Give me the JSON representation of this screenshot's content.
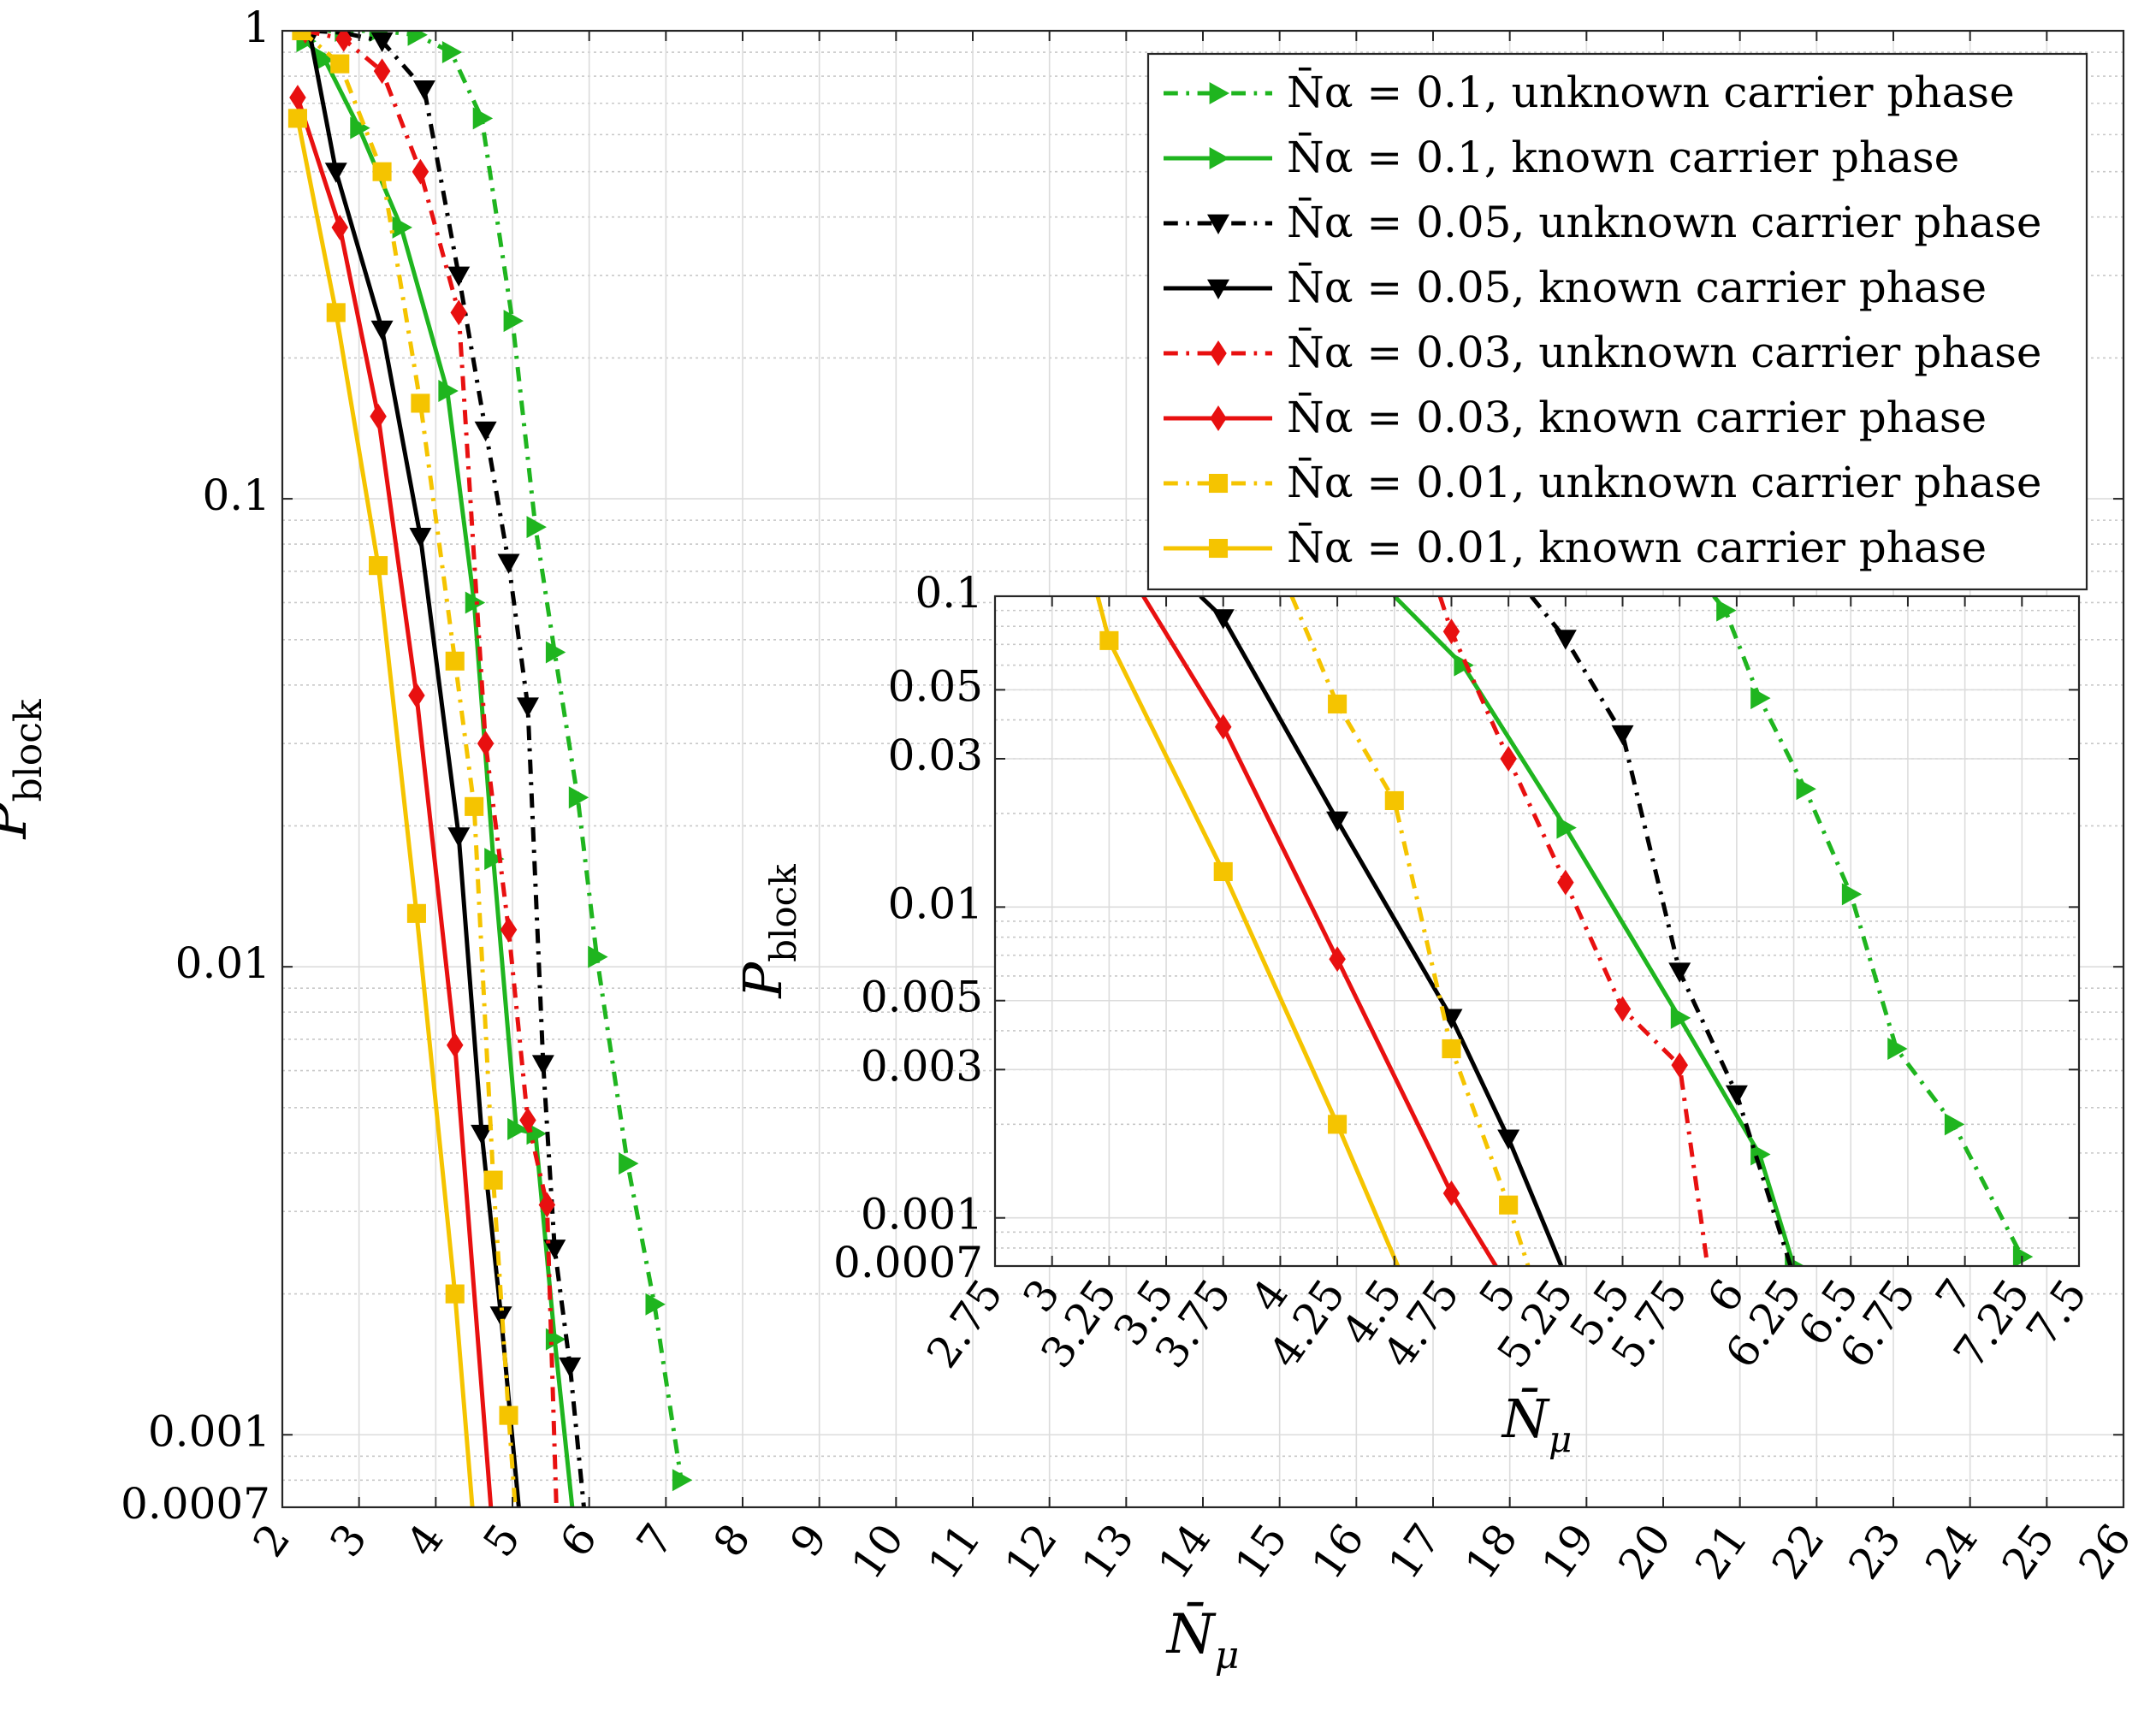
{
  "chart_data": {
    "type": "line",
    "xlabel": "N̄μ",
    "ylabel": "Pblock",
    "xlim": [
      2,
      26
    ],
    "ylim": [
      0.0007,
      1
    ],
    "yscale": "log",
    "grid": true,
    "legend_position": "top-right",
    "xticks": [
      2,
      3,
      4,
      5,
      6,
      7,
      8,
      9,
      10,
      11,
      12,
      13,
      14,
      15,
      16,
      17,
      18,
      19,
      20,
      21,
      22,
      23,
      24,
      25,
      26
    ],
    "yticks": [
      {
        "value": 1,
        "label": "1"
      },
      {
        "value": 0.1,
        "label": "0.1"
      },
      {
        "value": 0.01,
        "label": "0.01"
      },
      {
        "value": 0.001,
        "label": "0.001"
      },
      {
        "value": 0.0007,
        "label": "0.0007"
      }
    ],
    "series": [
      {
        "name": "N̄α = 0.1, unknown carrier phase",
        "color": "#1fb51f",
        "dash": "dashdot",
        "marker": "triangle-right",
        "x": [
          2.3,
          2.8,
          3.25,
          3.75,
          4.2,
          4.6,
          5.0,
          5.3,
          5.55,
          5.85,
          6.1,
          6.5,
          6.85,
          7.2
        ],
        "y": [
          1.0,
          1.0,
          1.0,
          0.98,
          0.9,
          0.65,
          0.24,
          0.087,
          0.047,
          0.023,
          0.0105,
          0.0038,
          0.0019,
          0.0008
        ]
      },
      {
        "name": "N̄α = 0.1, known carrier phase",
        "color": "#1fb51f",
        "dash": "solid",
        "marker": "triangle-right",
        "x": [
          2.3,
          2.55,
          3.0,
          3.55,
          4.15,
          4.5,
          4.75,
          5.05,
          5.3,
          5.55,
          5.8,
          6.0
        ],
        "y": [
          0.95,
          0.87,
          0.62,
          0.38,
          0.17,
          0.06,
          0.017,
          0.0045,
          0.0044,
          0.0016,
          0.00065,
          0.00065
        ]
      },
      {
        "name": "N̄α = 0.05, unknown carrier phase",
        "color": "#000000",
        "dash": "dashdot",
        "marker": "triangle-down",
        "x": [
          2.4,
          2.8,
          3.3,
          3.85,
          4.3,
          4.65,
          4.95,
          5.2,
          5.4,
          5.55,
          5.75,
          5.95
        ],
        "y": [
          1.0,
          0.99,
          0.95,
          0.75,
          0.3,
          0.14,
          0.073,
          0.036,
          0.0062,
          0.0025,
          0.0014,
          0.00065
        ]
      },
      {
        "name": "N̄α = 0.05, known carrier phase",
        "color": "#000000",
        "dash": "solid",
        "marker": "triangle-down",
        "x": [
          2.35,
          2.7,
          3.3,
          3.8,
          4.3,
          4.6,
          4.85,
          5.1
        ],
        "y": [
          1.0,
          0.5,
          0.23,
          0.083,
          0.019,
          0.0044,
          0.0018,
          0.00065
        ]
      },
      {
        "name": "N̄α = 0.03, unknown carrier phase",
        "color": "#e81010",
        "dash": "dashdot",
        "marker": "diamond",
        "x": [
          2.3,
          2.8,
          3.3,
          3.8,
          4.3,
          4.65,
          4.95,
          5.2,
          5.45,
          5.6
        ],
        "y": [
          1.0,
          0.96,
          0.82,
          0.5,
          0.25,
          0.03,
          0.012,
          0.0047,
          0.0031,
          0.0005
        ]
      },
      {
        "name": "N̄α = 0.03, known carrier phase",
        "color": "#e81010",
        "dash": "solid",
        "marker": "diamond",
        "x": [
          2.2,
          2.75,
          3.25,
          3.75,
          4.25,
          4.75
        ],
        "y": [
          0.72,
          0.38,
          0.15,
          0.038,
          0.0068,
          0.0006
        ]
      },
      {
        "name": "N̄α = 0.01, unknown carrier phase",
        "color": "#f5c400",
        "dash": "dashdot",
        "marker": "square",
        "x": [
          2.25,
          2.75,
          3.3,
          3.8,
          4.25,
          4.5,
          4.75,
          4.95,
          5.1
        ],
        "y": [
          1.0,
          0.85,
          0.5,
          0.16,
          0.045,
          0.022,
          0.0035,
          0.0011,
          0.0005
        ]
      },
      {
        "name": "N̄α = 0.01, known carrier phase",
        "color": "#f5c400",
        "dash": "solid",
        "marker": "square",
        "x": [
          2.2,
          2.7,
          3.25,
          3.75,
          4.25,
          4.55
        ],
        "y": [
          0.65,
          0.25,
          0.072,
          0.013,
          0.002,
          0.0005
        ]
      }
    ],
    "inset": {
      "xlabel": "N̄μ",
      "ylabel": "Pblock",
      "xlim": [
        2.75,
        7.5
      ],
      "ylim": [
        0.0007,
        0.1
      ],
      "yscale": "log",
      "grid": true,
      "xticks": [
        {
          "value": 2.75,
          "label": "2.75"
        },
        {
          "value": 3,
          "label": "3"
        },
        {
          "value": 3.25,
          "label": "3.25"
        },
        {
          "value": 3.5,
          "label": "3.5"
        },
        {
          "value": 3.75,
          "label": "3.75"
        },
        {
          "value": 4,
          "label": "4"
        },
        {
          "value": 4.25,
          "label": "4.25"
        },
        {
          "value": 4.5,
          "label": "4.5"
        },
        {
          "value": 4.75,
          "label": "4.75"
        },
        {
          "value": 5,
          "label": "5"
        },
        {
          "value": 5.25,
          "label": "5.25"
        },
        {
          "value": 5.5,
          "label": "5.5"
        },
        {
          "value": 5.75,
          "label": "5.75"
        },
        {
          "value": 6,
          "label": "6"
        },
        {
          "value": 6.25,
          "label": "6.25"
        },
        {
          "value": 6.5,
          "label": "6.5"
        },
        {
          "value": 6.75,
          "label": "6.75"
        },
        {
          "value": 7,
          "label": "7"
        },
        {
          "value": 7.25,
          "label": "7.25"
        },
        {
          "value": 7.5,
          "label": "7.5"
        }
      ],
      "yticks": [
        {
          "value": 0.1,
          "label": "0.1"
        },
        {
          "value": 0.05,
          "label": "0.05"
        },
        {
          "value": 0.03,
          "label": "0.03"
        },
        {
          "value": 0.01,
          "label": "0.01"
        },
        {
          "value": 0.005,
          "label": "0.005"
        },
        {
          "value": 0.003,
          "label": "0.003"
        },
        {
          "value": 0.001,
          "label": "0.001"
        },
        {
          "value": 0.0007,
          "label": "0.0007"
        }
      ],
      "series": [
        {
          "name": "N̄α = 0.1, unknown carrier phase",
          "color": "#1fb51f",
          "dash": "dashdot",
          "marker": "triangle-right",
          "x": [
            5.9,
            5.95,
            6.1,
            6.3,
            6.5,
            6.7,
            6.95,
            7.25
          ],
          "y": [
            0.1,
            0.09,
            0.047,
            0.024,
            0.011,
            0.0035,
            0.002,
            0.00075
          ]
        },
        {
          "name": "N̄α = 0.1, known carrier phase",
          "color": "#1fb51f",
          "dash": "solid",
          "marker": "triangle-right",
          "x": [
            4.5,
            4.8,
            5.25,
            5.75,
            6.1,
            6.25
          ],
          "y": [
            0.1,
            0.06,
            0.018,
            0.0044,
            0.0016,
            0.0007
          ]
        },
        {
          "name": "N̄α = 0.05, unknown carrier phase",
          "color": "#000000",
          "dash": "dashdot",
          "marker": "triangle-down",
          "x": [
            5.1,
            5.25,
            5.5,
            5.75,
            6.0,
            6.25
          ],
          "y": [
            0.1,
            0.073,
            0.036,
            0.0062,
            0.0025,
            0.00065
          ]
        },
        {
          "name": "N̄α = 0.05, known carrier phase",
          "color": "#000000",
          "dash": "solid",
          "marker": "triangle-down",
          "x": [
            3.65,
            3.75,
            4.25,
            4.75,
            5.0,
            5.25
          ],
          "y": [
            0.1,
            0.085,
            0.019,
            0.0044,
            0.0018,
            0.00065
          ]
        },
        {
          "name": "N̄α = 0.03, unknown carrier phase",
          "color": "#e81010",
          "dash": "dashdot",
          "marker": "diamond",
          "x": [
            4.7,
            4.75,
            5.0,
            5.25,
            5.5,
            5.75,
            5.9
          ],
          "y": [
            0.1,
            0.077,
            0.03,
            0.012,
            0.0047,
            0.0031,
            0.0005
          ]
        },
        {
          "name": "N̄α = 0.03, known carrier phase",
          "color": "#e81010",
          "dash": "solid",
          "marker": "diamond",
          "x": [
            3.4,
            3.75,
            4.25,
            4.75,
            5.0
          ],
          "y": [
            0.1,
            0.038,
            0.0068,
            0.0012,
            0.0006
          ]
        },
        {
          "name": "N̄α = 0.01, unknown carrier phase",
          "color": "#f5c400",
          "dash": "dashdot",
          "marker": "square",
          "x": [
            4.05,
            4.25,
            4.5,
            4.75,
            5.0,
            5.15
          ],
          "y": [
            0.1,
            0.045,
            0.022,
            0.0035,
            0.0011,
            0.0005
          ]
        },
        {
          "name": "N̄α = 0.01, known carrier phase",
          "color": "#f5c400",
          "dash": "solid",
          "marker": "square",
          "x": [
            3.2,
            3.25,
            3.75,
            4.25,
            4.6
          ],
          "y": [
            0.1,
            0.072,
            0.013,
            0.002,
            0.0005
          ]
        }
      ]
    }
  }
}
